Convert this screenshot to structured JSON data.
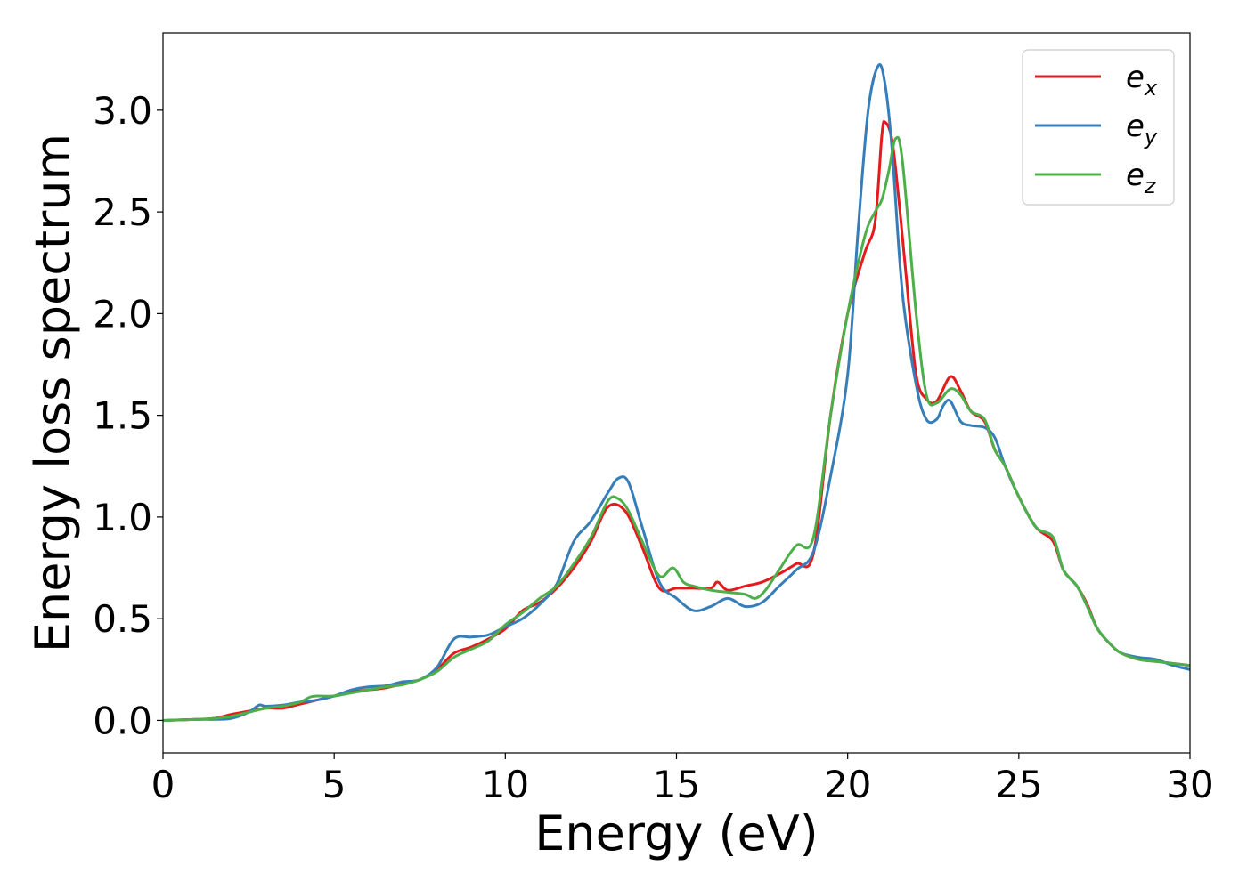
{
  "chart_data": {
    "type": "line",
    "title": "",
    "xlabel": "Energy (eV)",
    "ylabel": "Energy loss spectrum",
    "xlim": [
      0,
      30
    ],
    "ylim": [
      -0.16,
      3.38
    ],
    "xticks": [
      0,
      5,
      10,
      15,
      20,
      25,
      30
    ],
    "xtick_labels": [
      "0",
      "5",
      "10",
      "15",
      "20",
      "25",
      "30"
    ],
    "yticks": [
      0.0,
      0.5,
      1.0,
      1.5,
      2.0,
      2.5,
      3.0
    ],
    "ytick_labels": [
      "0.0",
      "0.5",
      "1.0",
      "1.5",
      "2.0",
      "2.5",
      "3.0"
    ],
    "grid": false,
    "legend_position": "top-right",
    "series": [
      {
        "name": "e_x",
        "label_base": "e",
        "label_sub": "x",
        "color": "#e41a1c",
        "x": [
          0,
          1,
          1.5,
          2,
          2.5,
          3,
          3.5,
          4,
          4.5,
          5,
          5.5,
          6,
          6.5,
          7,
          7.5,
          8,
          8.5,
          9,
          9.5,
          10,
          10.5,
          11,
          11.5,
          12,
          12.5,
          13,
          13.5,
          14,
          14.5,
          15,
          15.5,
          16,
          16.2,
          16.5,
          17,
          17.5,
          18,
          18.5,
          19,
          19.5,
          20,
          20.5,
          20.8,
          21,
          21.1,
          21.3,
          21.5,
          21.7,
          22,
          22.3,
          22.6,
          23,
          23.3,
          23.6,
          24,
          24.3,
          24.6,
          25,
          25.5,
          26,
          26.3,
          26.7,
          27,
          27.3,
          27.7,
          28,
          28.5,
          29,
          29.5,
          30
        ],
        "y": [
          0,
          0.005,
          0.01,
          0.03,
          0.045,
          0.06,
          0.06,
          0.08,
          0.1,
          0.12,
          0.14,
          0.15,
          0.16,
          0.18,
          0.2,
          0.25,
          0.33,
          0.36,
          0.4,
          0.45,
          0.54,
          0.58,
          0.65,
          0.75,
          0.88,
          1.05,
          1.03,
          0.85,
          0.65,
          0.65,
          0.65,
          0.65,
          0.68,
          0.64,
          0.66,
          0.68,
          0.72,
          0.77,
          0.82,
          1.5,
          2.0,
          2.3,
          2.45,
          2.88,
          2.94,
          2.85,
          2.55,
          2.2,
          1.7,
          1.58,
          1.57,
          1.69,
          1.62,
          1.52,
          1.47,
          1.33,
          1.25,
          1.1,
          0.95,
          0.88,
          0.74,
          0.66,
          0.57,
          0.45,
          0.37,
          0.33,
          0.3,
          0.29,
          0.28,
          0.27
        ]
      },
      {
        "name": "e_y",
        "label_base": "e",
        "label_sub": "y",
        "color": "#377eb8",
        "x": [
          0,
          1,
          1.5,
          2,
          2.5,
          2.8,
          3,
          3.5,
          4,
          4.5,
          5,
          5.5,
          6,
          6.5,
          7,
          7.5,
          8,
          8.5,
          9,
          9.5,
          10,
          10.5,
          11,
          11.5,
          12,
          12.5,
          13,
          13.3,
          13.6,
          14,
          14.5,
          15,
          15.5,
          16,
          16.5,
          17,
          17.5,
          18,
          18.5,
          19,
          19.5,
          20,
          20.3,
          20.6,
          20.9,
          21.1,
          21.3,
          21.6,
          22,
          22.3,
          22.6,
          22.8,
          23,
          23.3,
          23.6,
          24,
          24.3,
          24.6,
          25,
          25.5,
          26,
          26.3,
          26.7,
          27,
          27.3,
          27.7,
          28,
          28.5,
          29,
          29.5,
          30
        ],
        "y": [
          0,
          0.005,
          0.005,
          0.01,
          0.04,
          0.075,
          0.07,
          0.075,
          0.09,
          0.1,
          0.12,
          0.15,
          0.165,
          0.17,
          0.19,
          0.2,
          0.26,
          0.4,
          0.41,
          0.42,
          0.46,
          0.5,
          0.57,
          0.67,
          0.88,
          0.98,
          1.12,
          1.19,
          1.17,
          0.95,
          0.68,
          0.6,
          0.54,
          0.56,
          0.6,
          0.56,
          0.58,
          0.66,
          0.74,
          0.83,
          1.2,
          1.7,
          2.4,
          3.0,
          3.22,
          3.12,
          2.8,
          2.1,
          1.65,
          1.48,
          1.48,
          1.55,
          1.57,
          1.47,
          1.45,
          1.44,
          1.39,
          1.25,
          1.1,
          0.95,
          0.9,
          0.74,
          0.66,
          0.56,
          0.45,
          0.37,
          0.33,
          0.31,
          0.3,
          0.27,
          0.25
        ]
      },
      {
        "name": "e_z",
        "label_base": "e",
        "label_sub": "z",
        "color": "#4daf4a",
        "x": [
          0,
          1,
          1.5,
          2,
          2.5,
          3,
          3.5,
          4,
          4.3,
          4.5,
          5,
          5.5,
          6,
          6.5,
          7,
          7.5,
          8,
          8.5,
          9,
          9.5,
          10,
          10.5,
          11,
          11.5,
          12,
          12.5,
          13,
          13.3,
          13.6,
          14,
          14.5,
          14.9,
          15.2,
          15.5,
          16,
          16.5,
          17,
          17.3,
          17.6,
          18,
          18.5,
          19,
          19.5,
          20,
          20.5,
          20.8,
          21,
          21.2,
          21.4,
          21.6,
          22,
          22.3,
          22.6,
          23,
          23.3,
          23.6,
          24,
          24.3,
          24.6,
          25,
          25.5,
          26,
          26.3,
          26.7,
          27,
          27.3,
          27.7,
          28,
          28.5,
          29,
          29.5,
          30
        ],
        "y": [
          0,
          0.005,
          0.01,
          0.02,
          0.04,
          0.06,
          0.07,
          0.09,
          0.115,
          0.12,
          0.12,
          0.135,
          0.15,
          0.165,
          0.175,
          0.2,
          0.24,
          0.31,
          0.35,
          0.39,
          0.47,
          0.53,
          0.6,
          0.66,
          0.77,
          0.9,
          1.08,
          1.09,
          1.03,
          0.88,
          0.71,
          0.75,
          0.68,
          0.66,
          0.64,
          0.63,
          0.62,
          0.6,
          0.64,
          0.74,
          0.86,
          0.9,
          1.5,
          2.0,
          2.38,
          2.5,
          2.56,
          2.7,
          2.86,
          2.75,
          2.0,
          1.6,
          1.56,
          1.63,
          1.6,
          1.52,
          1.48,
          1.33,
          1.25,
          1.1,
          0.95,
          0.9,
          0.74,
          0.66,
          0.56,
          0.45,
          0.37,
          0.33,
          0.3,
          0.29,
          0.28,
          0.27
        ]
      }
    ]
  }
}
